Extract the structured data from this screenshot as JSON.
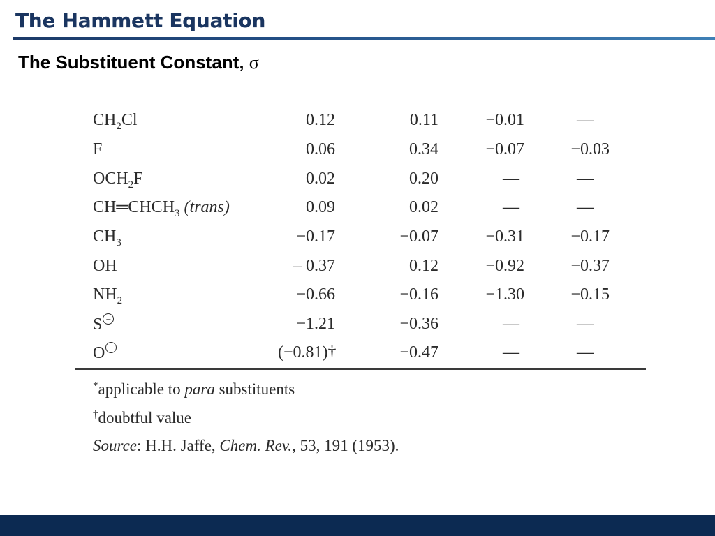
{
  "slide": {
    "title": "The Hammett Equation",
    "subtitle": "The Substituent Constant,",
    "subtitle_symbol": "σ"
  },
  "table": {
    "rows": [
      {
        "name": "CH",
        "sub": "2",
        "rest": "Cl",
        "values": [
          "0.12",
          "0.11",
          "−0.01",
          "—"
        ]
      },
      {
        "name": "F",
        "sub": "",
        "rest": "",
        "values": [
          "0.06",
          "0.34",
          "−0.07",
          "−0.03"
        ]
      },
      {
        "name": "OCH",
        "sub": "2",
        "rest": "F",
        "values": [
          "0.02",
          "0.20",
          "—",
          "—"
        ]
      },
      {
        "name": "CH═CHCH",
        "sub": "3",
        "rest": " ",
        "italic": "(trans)",
        "values": [
          "0.09",
          "0.02",
          "—",
          "—"
        ]
      },
      {
        "name": "CH",
        "sub": "3",
        "rest": "",
        "values": [
          "−0.17",
          "−0.07",
          "−0.31",
          "−0.17"
        ]
      },
      {
        "name": "OH",
        "sub": "",
        "rest": "",
        "values": [
          "– 0.37",
          "0.12",
          "−0.92",
          "−0.37"
        ]
      },
      {
        "name": "NH",
        "sub": "2",
        "rest": "",
        "values": [
          "−0.66",
          "−0.16",
          "−1.30",
          "−0.15"
        ]
      },
      {
        "name": "S",
        "charge": "−",
        "values": [
          "−1.21",
          "−0.36",
          "—",
          "—"
        ]
      },
      {
        "name": "O",
        "charge": "−",
        "values": [
          "(−0.81)†",
          "−0.47",
          "—",
          "—"
        ]
      }
    ]
  },
  "footnotes": {
    "note1_mark": "*",
    "note1_pre": "applicable to ",
    "note1_italic": "para",
    "note1_post": " substituents",
    "note2_mark": "†",
    "note2_text": "doubtful value",
    "source_label": "Source",
    "source_pre": ": H.H. Jaffe, ",
    "source_journal": "Chem. Rev.",
    "source_post": ", 53, 191 (1953)."
  }
}
